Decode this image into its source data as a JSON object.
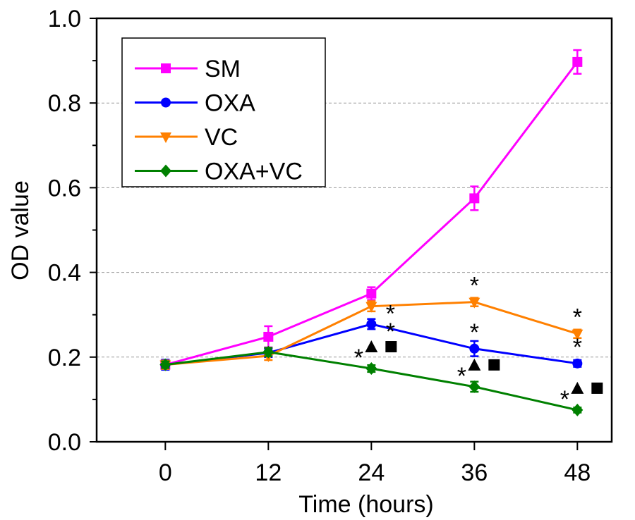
{
  "chart_data": {
    "type": "line",
    "title": "",
    "xlabel": "Time (hours)",
    "ylabel": "OD value",
    "x": [
      0,
      12,
      24,
      36,
      48
    ],
    "xlim": [
      -8,
      52
    ],
    "ylim": [
      0,
      1.0
    ],
    "xticks": [
      0,
      12,
      24,
      36,
      48
    ],
    "xtick_labels": [
      "0",
      "12",
      "24",
      "36",
      "48"
    ],
    "yticks": [
      0.0,
      0.2,
      0.4,
      0.6,
      0.8,
      1.0
    ],
    "ytick_labels": [
      "0.0",
      "0.2",
      "0.4",
      "0.6",
      "0.8",
      "1.0"
    ],
    "yminor_ticks": [
      0.1,
      0.3,
      0.5,
      0.7,
      0.9
    ],
    "grid": "horizontal dashed at major y ticks",
    "legend_position": "top-left",
    "series": [
      {
        "name": "SM",
        "color": "#ff00ff",
        "marker": "square",
        "values": [
          0.182,
          0.248,
          0.35,
          0.575,
          0.897
        ],
        "errors": [
          0.01,
          0.025,
          0.015,
          0.028,
          0.028
        ]
      },
      {
        "name": "OXA",
        "color": "#0000ff",
        "marker": "circle",
        "values": [
          0.182,
          0.21,
          0.278,
          0.22,
          0.185
        ],
        "errors": [
          0.012,
          0.01,
          0.012,
          0.018,
          0.008
        ]
      },
      {
        "name": "VC",
        "color": "#ff8000",
        "marker": "triangle-down",
        "values": [
          0.182,
          0.203,
          0.32,
          0.33,
          0.255
        ],
        "errors": [
          0.01,
          0.01,
          0.012,
          0.01,
          0.01
        ]
      },
      {
        "name": "OXA+VC",
        "color": "#008000",
        "marker": "diamond",
        "values": [
          0.182,
          0.212,
          0.173,
          0.13,
          0.075
        ],
        "errors": [
          0.008,
          0.01,
          0.008,
          0.012,
          0.006
        ]
      }
    ],
    "annotations": [
      {
        "x": 24,
        "series": "VC",
        "text": "*"
      },
      {
        "x": 24,
        "series": "OXA",
        "text": "*"
      },
      {
        "x": 24,
        "series": "OXA+VC",
        "text": "*▲■"
      },
      {
        "x": 36,
        "series": "VC",
        "text": "*"
      },
      {
        "x": 36,
        "series": "OXA",
        "text": "*"
      },
      {
        "x": 36,
        "series": "OXA+VC",
        "text": "*▲■"
      },
      {
        "x": 48,
        "series": "VC",
        "text": "*"
      },
      {
        "x": 48,
        "series": "OXA",
        "text": "*"
      },
      {
        "x": 48,
        "series": "OXA+VC",
        "text": "*▲■"
      }
    ]
  }
}
